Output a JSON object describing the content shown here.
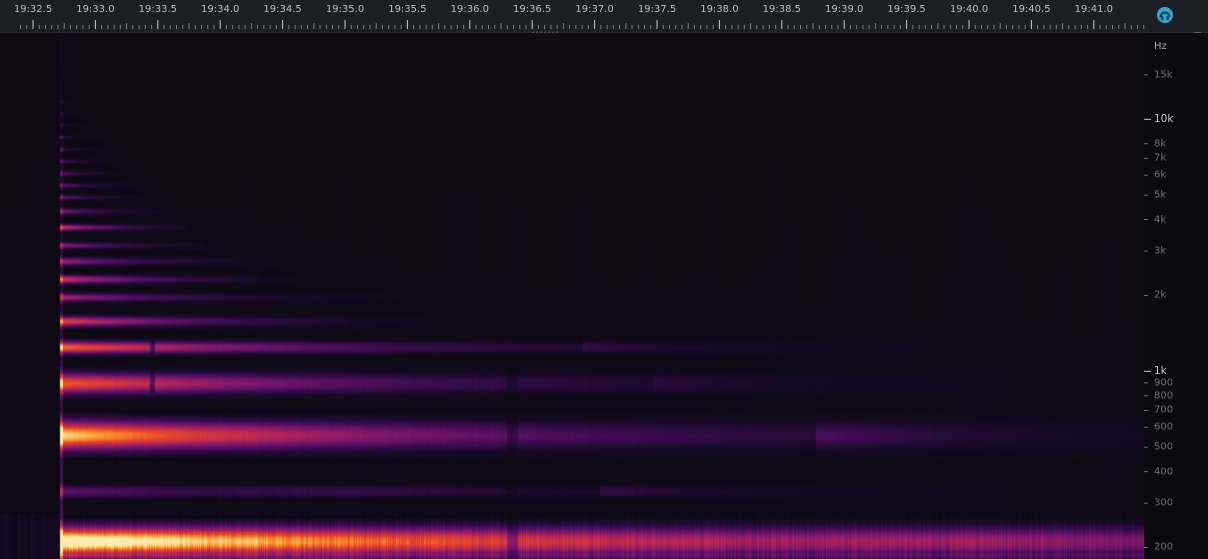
{
  "timeline": {
    "labels": [
      "19:32.5",
      "19:33.0",
      "19:33.5",
      "19:34.0",
      "19:34.5",
      "19:35.0",
      "19:35.5",
      "19:36.0",
      "19:36.5",
      "19:37.0",
      "19:37.5",
      "19:38.0",
      "19:38.5",
      "19:39.0",
      "19:39.5",
      "19:40.0",
      "19:40.5",
      "19:41.0"
    ]
  },
  "frequency_axis": {
    "unit": "Hz",
    "labels": [
      {
        "text": "15k",
        "hz": 15000,
        "major": false
      },
      {
        "text": "10k",
        "hz": 10000,
        "major": true
      },
      {
        "text": "8k",
        "hz": 8000,
        "major": false
      },
      {
        "text": "7k",
        "hz": 7000,
        "major": false
      },
      {
        "text": "6k",
        "hz": 6000,
        "major": false
      },
      {
        "text": "5k",
        "hz": 5000,
        "major": false
      },
      {
        "text": "4k",
        "hz": 4000,
        "major": false
      },
      {
        "text": "3k",
        "hz": 3000,
        "major": false
      },
      {
        "text": "2k",
        "hz": 2000,
        "major": false
      },
      {
        "text": "1k",
        "hz": 1000,
        "major": true
      },
      {
        "text": "900",
        "hz": 900,
        "major": false
      },
      {
        "text": "800",
        "hz": 800,
        "major": false
      },
      {
        "text": "700",
        "hz": 700,
        "major": false
      },
      {
        "text": "600",
        "hz": 600,
        "major": false
      },
      {
        "text": "500",
        "hz": 500,
        "major": false
      },
      {
        "text": "400",
        "hz": 400,
        "major": false
      },
      {
        "text": "300",
        "hz": 300,
        "major": false
      },
      {
        "text": "200",
        "hz": 200,
        "major": false
      }
    ]
  },
  "settings_icon": "spectrogram-settings-icon",
  "colors": {
    "background": "#0b0a10",
    "ruler": "#1e1f24",
    "accent": "#2fa8d8"
  }
}
